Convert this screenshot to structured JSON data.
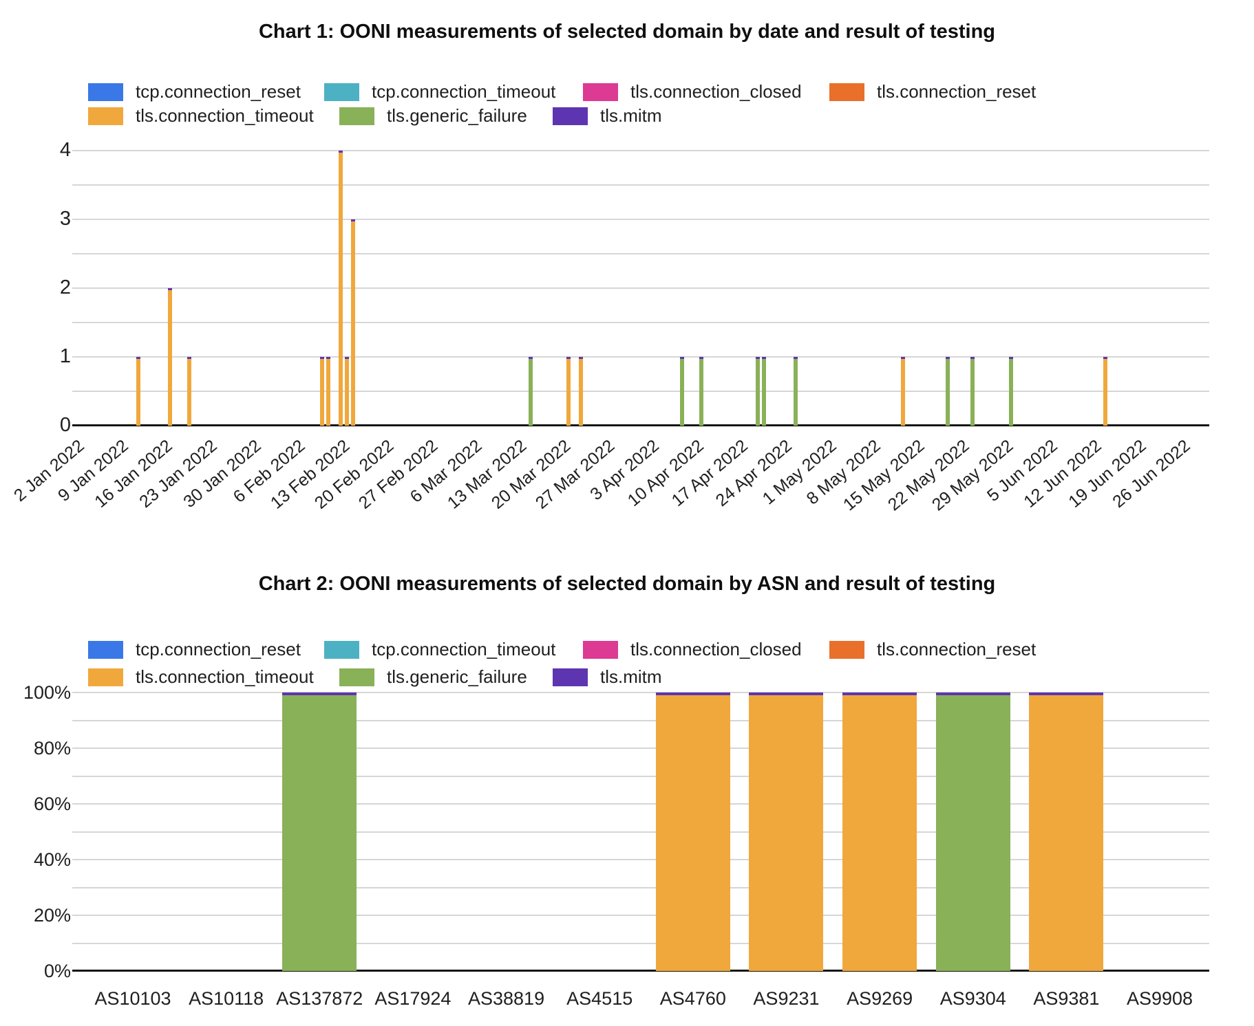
{
  "page": {
    "background": "#ffffff"
  },
  "palette": {
    "tcp.connection_reset": "#3B78E7",
    "tcp.connection_timeout": "#4DB1C4",
    "tls.connection_closed": "#DC3A93",
    "tls.connection_reset": "#E8702A",
    "tls.connection_timeout": "#F0A83C",
    "tls.generic_failure": "#89B158",
    "tls.mitm": "#5E35B1"
  },
  "legend_items": [
    "tcp.connection_reset",
    "tcp.connection_timeout",
    "tls.connection_closed",
    "tls.connection_reset",
    "tls.connection_timeout",
    "tls.generic_failure",
    "tls.mitm"
  ],
  "chart_data": [
    {
      "type": "bar",
      "title": "Chart 1: OONI measurements of selected domain by date and result of testing",
      "xlabel": "",
      "ylabel": "",
      "x_axis_type": "daily dates, 2 Jan 2022 - 30 Jun 2022",
      "x_tick_labels": [
        "2 Jan 2022",
        "9 Jan 2022",
        "16 Jan 2022",
        "23 Jan 2022",
        "30 Jan 2022",
        "6 Feb 2022",
        "13 Feb 2022",
        "20 Feb 2022",
        "27 Feb 2022",
        "6 Mar 2022",
        "13 Mar 2022",
        "20 Mar 2022",
        "27 Mar 2022",
        "3 Apr 2022",
        "10 Apr 2022",
        "17 Apr 2022",
        "24 Apr 2022",
        "1 May 2022",
        "8 May 2022",
        "15 May 2022",
        "22 May 2022",
        "29 May 2022",
        "5 Jun 2022",
        "12 Jun 2022",
        "19 Jun 2022",
        "26 Jun 2022"
      ],
      "ylim": [
        0,
        4
      ],
      "y_ticks": [
        0,
        1,
        2,
        3,
        4
      ],
      "grid": "horizontal gridlines every 0.5",
      "legend_position": "top",
      "series_names": [
        "tcp.connection_reset",
        "tcp.connection_timeout",
        "tls.connection_closed",
        "tls.connection_reset",
        "tls.connection_timeout",
        "tls.generic_failure",
        "tls.mitm"
      ],
      "top_cap_series": "tls.mitm",
      "points": [
        {
          "date": "12 Jan 2022",
          "series": "tls.connection_timeout",
          "value": 1
        },
        {
          "date": "17 Jan 2022",
          "series": "tls.connection_timeout",
          "value": 2
        },
        {
          "date": "20 Jan 2022",
          "series": "tls.connection_timeout",
          "value": 1
        },
        {
          "date": "10 Feb 2022",
          "series": "tls.connection_timeout",
          "value": 1
        },
        {
          "date": "11 Feb 2022",
          "series": "tls.connection_timeout",
          "value": 1
        },
        {
          "date": "13 Feb 2022",
          "series": "tls.connection_timeout",
          "value": 4
        },
        {
          "date": "14 Feb 2022",
          "series": "tls.connection_timeout",
          "value": 1
        },
        {
          "date": "15 Feb 2022",
          "series": "tls.connection_timeout",
          "value": 3
        },
        {
          "date": "15 Mar 2022",
          "series": "tls.generic_failure",
          "value": 1
        },
        {
          "date": "21 Mar 2022",
          "series": "tls.connection_timeout",
          "value": 1
        },
        {
          "date": "23 Mar 2022",
          "series": "tls.connection_timeout",
          "value": 1
        },
        {
          "date": "8 Apr 2022",
          "series": "tls.generic_failure",
          "value": 1
        },
        {
          "date": "11 Apr 2022",
          "series": "tls.generic_failure",
          "value": 1
        },
        {
          "date": "20 Apr 2022",
          "series": "tls.generic_failure",
          "value": 1
        },
        {
          "date": "21 Apr 2022",
          "series": "tls.generic_failure",
          "value": 1
        },
        {
          "date": "26 Apr 2022",
          "series": "tls.generic_failure",
          "value": 1
        },
        {
          "date": "13 May 2022",
          "series": "tls.connection_timeout",
          "value": 1
        },
        {
          "date": "20 May 2022",
          "series": "tls.generic_failure",
          "value": 1
        },
        {
          "date": "24 May 2022",
          "series": "tls.generic_failure",
          "value": 1
        },
        {
          "date": "30 May 2022",
          "series": "tls.generic_failure",
          "value": 1
        },
        {
          "date": "14 Jun 2022",
          "series": "tls.connection_timeout",
          "value": 1
        }
      ]
    },
    {
      "type": "bar",
      "stacking": "percent",
      "title": "Chart 2: OONI measurements of selected domain by ASN and result of testing",
      "xlabel": "",
      "ylabel": "",
      "categories": [
        "AS10103",
        "AS10118",
        "AS137872",
        "AS17924",
        "AS38819",
        "AS4515",
        "AS4760",
        "AS9231",
        "AS9269",
        "AS9304",
        "AS9381",
        "AS9908"
      ],
      "y_tick_labels": [
        "0%",
        "20%",
        "40%",
        "60%",
        "80%",
        "100%"
      ],
      "ylim_percent": [
        0,
        100
      ],
      "grid": "horizontal gridlines every 10%",
      "legend_position": "top",
      "top_cap_series": "tls.mitm",
      "series": [
        {
          "name": "tls.connection_timeout",
          "values": [
            0,
            0,
            0,
            0,
            0,
            0,
            100,
            100,
            100,
            0,
            100,
            0
          ]
        },
        {
          "name": "tls.generic_failure",
          "values": [
            0,
            0,
            100,
            0,
            0,
            0,
            0,
            0,
            0,
            100,
            0,
            0
          ]
        }
      ]
    }
  ]
}
